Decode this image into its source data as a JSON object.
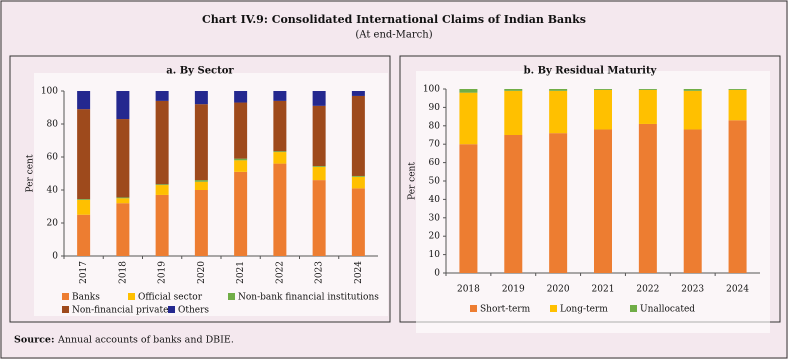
{
  "header": {
    "title": "Chart IV.9: Consolidated International Claims of Indian Banks",
    "subtitle": "(At end-March)"
  },
  "footer": {
    "source_label": "Source:",
    "source": "Annual accounts of banks and DBIE."
  },
  "chart_data": [
    {
      "type": "stacked_bar",
      "title": "a. By Sector",
      "y_label": "Per cent",
      "categories": [
        "2017",
        "2018",
        "2019",
        "2020",
        "2021",
        "2022",
        "2023",
        "2024"
      ],
      "series": [
        {
          "name": "Banks",
          "color": "#ed7d31",
          "values": [
            25,
            32,
            37,
            40,
            51,
            56,
            46,
            41
          ]
        },
        {
          "name": "Official sector",
          "color": "#ffc000",
          "values": [
            9,
            3,
            6,
            5,
            7,
            7,
            8,
            7
          ]
        },
        {
          "name": "Non-bank financial institutions",
          "color": "#70ad47",
          "values": [
            0.5,
            0.5,
            0.5,
            1,
            1,
            0.5,
            0.5,
            0.5
          ]
        },
        {
          "name": "Non-financial private",
          "color": "#9e4a1c",
          "values": [
            54.5,
            47.5,
            50.5,
            46,
            34,
            30.5,
            36.5,
            48.5
          ]
        },
        {
          "name": "Others",
          "color": "#24288f",
          "values": [
            11,
            17,
            6,
            8,
            7,
            6,
            9,
            3
          ]
        }
      ],
      "ylim": [
        0,
        100
      ],
      "yticks": [
        0,
        20,
        40,
        60,
        80,
        100
      ]
    },
    {
      "type": "stacked_bar",
      "title": "b. By Residual Maturity",
      "y_label": "Per cent",
      "categories": [
        "2018",
        "2019",
        "2020",
        "2021",
        "2022",
        "2023",
        "2024"
      ],
      "series": [
        {
          "name": "Short-term",
          "color": "#ed7d31",
          "values": [
            70,
            75,
            76,
            78,
            81,
            78,
            83
          ]
        },
        {
          "name": "Long-term",
          "color": "#ffc000",
          "values": [
            28,
            24,
            23,
            21.5,
            18.5,
            21,
            16.5
          ]
        },
        {
          "name": "Unallocated",
          "color": "#70ad47",
          "values": [
            2,
            1,
            1,
            0.5,
            0.5,
            1,
            0.5
          ]
        }
      ],
      "ylim": [
        0,
        100
      ],
      "yticks": [
        0,
        10,
        20,
        30,
        40,
        50,
        60,
        70,
        80,
        90,
        100
      ]
    }
  ]
}
